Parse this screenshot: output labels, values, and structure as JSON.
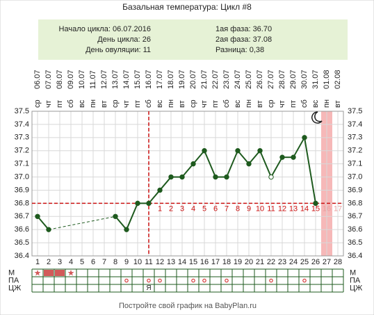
{
  "chart_data": {
    "type": "line",
    "title": "Базальная температура: Цикл #8",
    "info_left": [
      "Начало цикла: 06.07.2016",
      "День цикла: 26",
      "День овуляции: 11"
    ],
    "info_right": [
      "1ая фаза: 36.70",
      "2ая фаза: 37.08",
      "Разница: 0,38"
    ],
    "dates": [
      "06.07",
      "07.07",
      "08.07",
      "09.07",
      "10.07",
      "11.07",
      "12.07",
      "13.07",
      "14.07",
      "15.07",
      "16.07",
      "17.07",
      "18.07",
      "19.07",
      "20.07",
      "21.07",
      "22.07",
      "23.07",
      "24.07",
      "25.07",
      "26.07",
      "27.07",
      "28.07",
      "29.07",
      "30.07",
      "31.07",
      "01.08",
      "02.08"
    ],
    "weekdays": [
      "ср",
      "чт",
      "пт",
      "сб",
      "вс",
      "пн",
      "вт",
      "ср",
      "чт",
      "пт",
      "сб",
      "вс",
      "пн",
      "вт",
      "ср",
      "чт",
      "пт",
      "сб",
      "вс",
      "пн",
      "вт",
      "ср",
      "чт",
      "пт",
      "сб",
      "вс",
      "пн",
      "вт"
    ],
    "x": [
      1,
      2,
      3,
      4,
      5,
      6,
      7,
      8,
      9,
      10,
      11,
      12,
      13,
      14,
      15,
      16,
      17,
      18,
      19,
      20,
      21,
      22,
      23,
      24,
      25,
      26,
      27,
      28
    ],
    "series": [
      {
        "name": "Температура",
        "color": "#1e5a1e",
        "values": [
          36.7,
          36.6,
          null,
          null,
          null,
          null,
          null,
          36.7,
          36.6,
          36.8,
          36.8,
          36.9,
          37.0,
          37.0,
          37.1,
          37.2,
          37.0,
          37.0,
          37.2,
          37.1,
          37.2,
          37.0,
          37.15,
          37.15,
          37.3,
          36.8,
          null,
          null
        ]
      }
    ],
    "open_points": [
      22
    ],
    "ylim": [
      36.4,
      37.5
    ],
    "yticks": [
      36.4,
      36.5,
      36.6,
      36.7,
      36.8,
      36.9,
      {
        "value": 37,
        "label": "37.0"
      },
      37.1,
      37.2,
      37.3,
      37.4,
      37.5
    ],
    "coverline": 36.8,
    "ovulation_day": 11,
    "line_color": "#cc1111",
    "phase2_labels": [
      1,
      2,
      3,
      4,
      5,
      6,
      7,
      8,
      9,
      10,
      11,
      12,
      13,
      14,
      15,
      16,
      17
    ],
    "today": 27,
    "row_labels": [
      "М",
      "ПА",
      "ЦЖ"
    ],
    "m_stars": [
      1,
      4
    ],
    "m_fill": [
      2,
      3
    ],
    "pa_days": [
      9,
      11,
      12,
      15,
      16,
      18,
      22,
      25
    ],
    "czh": [
      {
        "day": 11,
        "label": "Я"
      }
    ],
    "footer": "Постройте свой график на BabyPlan.ru"
  }
}
